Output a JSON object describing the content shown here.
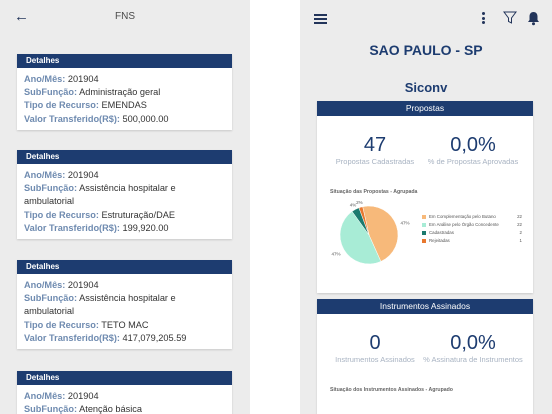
{
  "left": {
    "back_icon": "arrow-left-icon",
    "title": "FNS",
    "cards": [
      {
        "header": "Detalhes",
        "fields": [
          {
            "label": "Ano/Mês:",
            "value": "201904"
          },
          {
            "label": "SubFunção:",
            "value": "Administração geral"
          },
          {
            "label": "Tipo de Recurso:",
            "value": "EMENDAS"
          },
          {
            "label": "Valor Transferido(R$):",
            "value": "500,000.00"
          }
        ]
      },
      {
        "header": "Detalhes",
        "fields": [
          {
            "label": "Ano/Mês:",
            "value": "201904"
          },
          {
            "label": "SubFunção:",
            "value": "Assistência hospitalar e ambulatorial"
          },
          {
            "label": "Tipo de Recurso:",
            "value": "Estruturação/DAE"
          },
          {
            "label": "Valor Transferido(R$):",
            "value": "199,920.00"
          }
        ]
      },
      {
        "header": "Detalhes",
        "fields": [
          {
            "label": "Ano/Mês:",
            "value": "201904"
          },
          {
            "label": "SubFunção:",
            "value": "Assistência hospitalar e ambulatorial"
          },
          {
            "label": "Tipo de Recurso:",
            "value": "TETO MAC"
          },
          {
            "label": "Valor Transferido(R$):",
            "value": "417,079,205.59"
          }
        ]
      },
      {
        "header": "Detalhes",
        "fields": [
          {
            "label": "Ano/Mês:",
            "value": "201904"
          },
          {
            "label": "SubFunção:",
            "value": "Atenção básica"
          }
        ]
      }
    ]
  },
  "right": {
    "menu_icon": "hamburger-menu-icon",
    "more_icon": "more-vertical-icon",
    "filter_icon": "filter-icon",
    "bell_icon": "bell-icon",
    "city": "SAO PAULO - SP",
    "app_name": "Siconv",
    "propostas": {
      "header": "Propostas",
      "stat1_value": "47",
      "stat1_caption": "Propostas Cadastradas",
      "stat2_value": "0,0%",
      "stat2_caption": "% de Propostas Aprovadas",
      "chart_title": "Situação das Propostas - Agrupada"
    },
    "instrumentos": {
      "header": "Instrumentos Assinados",
      "stat1_value": "0",
      "stat1_caption": "Instrumentos Assinados",
      "stat2_value": "0,0%",
      "stat2_caption": "% Assinatura de Instrumentos",
      "chart_title": "Situação dos Instrumentos Assinados - Agrupado"
    }
  },
  "chart_data": {
    "type": "pie",
    "title": "Situação das Propostas - Agrupada",
    "categories": [
      "Em Complementação pelo Butano",
      "Em Análise pelo Órgão Concedente",
      "Cadastradas",
      "Rejeitadas"
    ],
    "values": [
      22,
      22,
      2,
      1
    ],
    "slice_labels": [
      "47%",
      "47%",
      "4%",
      "2%"
    ],
    "colors": [
      "#f7b97a",
      "#a8ecd6",
      "#1b7a6e",
      "#e8772e"
    ]
  }
}
